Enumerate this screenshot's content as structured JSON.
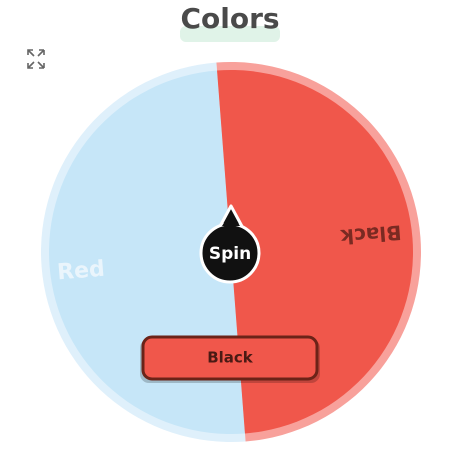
{
  "title": "Colors",
  "wheel": {
    "segments": [
      {
        "label": "Red"
      },
      {
        "label": "Black"
      }
    ]
  },
  "spin_button": "Spin",
  "result": "Black"
}
